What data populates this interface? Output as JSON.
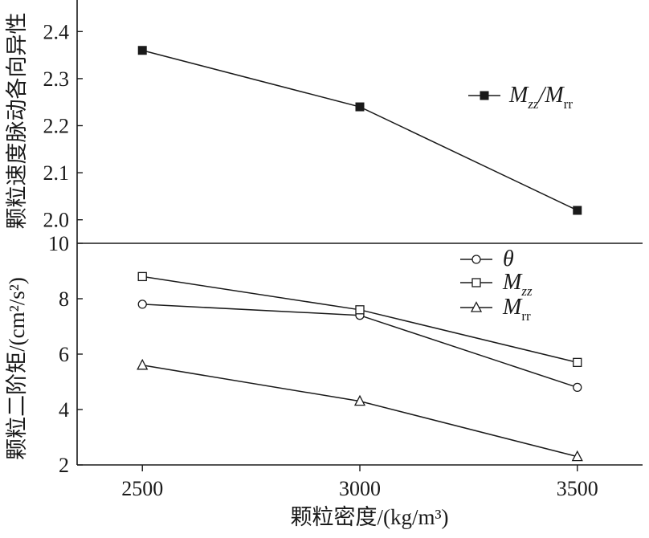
{
  "chart_data": [
    {
      "type": "line",
      "panel": "top",
      "categories": [
        "2500",
        "3000",
        "3500"
      ],
      "x": [
        2500,
        3000,
        3500
      ],
      "series": [
        {
          "name": "Mzz/Mrr",
          "marker": "filled-square",
          "values": [
            2.36,
            2.24,
            2.02
          ]
        }
      ],
      "ylabel": "颗粒速度脉动各向异性",
      "ylim": [
        1.95,
        2.45
      ],
      "yticks": [
        2.0,
        2.1,
        2.2,
        2.3,
        2.4
      ],
      "ytick_labels": [
        "2.0",
        "2.1",
        "2.2",
        "2.3",
        "2.4"
      ],
      "grid": false,
      "legend_position": "right",
      "legend": {
        "symbol": "M",
        "sub_a": "zz",
        "slash": "/",
        "symbol_b": "M",
        "sub_b": "rr"
      }
    },
    {
      "type": "line",
      "panel": "bottom",
      "categories": [
        "2500",
        "3000",
        "3500"
      ],
      "x": [
        2500,
        3000,
        3500
      ],
      "series": [
        {
          "name": "θ",
          "marker": "open-circle",
          "values": [
            7.8,
            7.4,
            4.8
          ]
        },
        {
          "name": "Mzz",
          "marker": "open-square",
          "values": [
            8.8,
            7.6,
            5.7
          ]
        },
        {
          "name": "Mrr",
          "marker": "open-triangle",
          "values": [
            5.6,
            4.3,
            2.3
          ]
        }
      ],
      "xlabel": "颗粒密度/(kg/m³)",
      "ylabel": "颗粒二阶矩/(cm²/s²)",
      "ylim": [
        2,
        10
      ],
      "yticks": [
        2,
        4,
        6,
        8,
        10
      ],
      "ytick_labels": [
        "2",
        "4",
        "6",
        "8",
        "10"
      ],
      "xticks": [
        2500,
        3000,
        3500
      ],
      "xtick_labels": [
        "2500",
        "3000",
        "3500"
      ],
      "xlim": [
        2350,
        3650
      ],
      "grid": false,
      "legend_position": "top-right",
      "legend": [
        {
          "symbol": "θ",
          "sub": ""
        },
        {
          "symbol": "M",
          "sub": "zz"
        },
        {
          "symbol": "M",
          "sub": "rr"
        }
      ]
    }
  ],
  "colors": {
    "line": "#1a1a1a",
    "background": "#ffffff"
  }
}
